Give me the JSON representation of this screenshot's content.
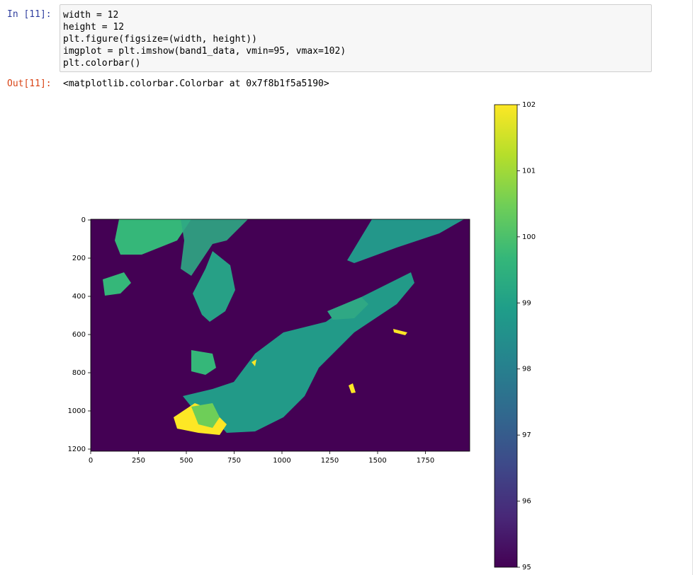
{
  "input": {
    "prompt": "In [11]:",
    "code": [
      "width = 12",
      "height = 12",
      "plt.figure(figsize=(width, height))",
      "imgplot = plt.imshow(band1_data, vmin=95, vmax=102)",
      "plt.colorbar()"
    ]
  },
  "output": {
    "prompt": "Out[11]:",
    "text": "<matplotlib.colorbar.Colorbar at 0x7f8b1f5a5190>"
  },
  "figure": {
    "xticks": [
      0,
      250,
      500,
      750,
      1000,
      1250,
      1500,
      1750
    ],
    "yticks": [
      0,
      200,
      400,
      600,
      800,
      1000,
      1200
    ],
    "colorbar_ticks": [
      95,
      96,
      97,
      98,
      99,
      100,
      101,
      102
    ]
  }
}
